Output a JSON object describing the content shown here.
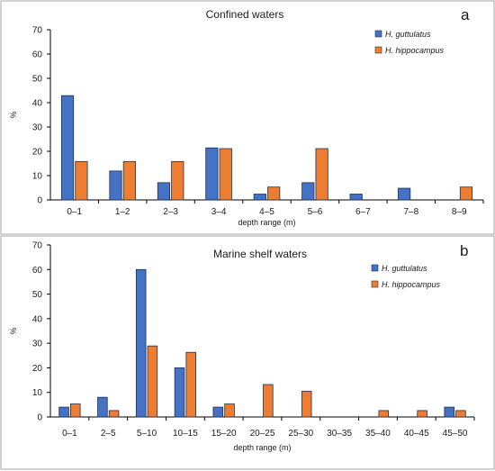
{
  "colors": {
    "series_1": "#4472C4",
    "series_2": "#ED7D31",
    "bar_stroke": "#1f2f4d",
    "axis": "#000000",
    "panel_border": "#a6a6a6"
  },
  "chart_data": [
    {
      "type": "bar",
      "panel_letter": "a",
      "title": "Confined waters",
      "xlabel": "depth range (m)",
      "ylabel": "%",
      "ylim": [
        0,
        70
      ],
      "y_ticks": [
        0,
        10,
        20,
        30,
        40,
        50,
        60,
        70
      ],
      "grid": false,
      "legend_position": "top-right",
      "categories": [
        "0–1",
        "1–2",
        "2–3",
        "3–4",
        "4–5",
        "5–6",
        "6–7",
        "7–8",
        "8–9"
      ],
      "series": [
        {
          "name": "H. guttulatus",
          "values": [
            42.9,
            11.9,
            7.1,
            21.4,
            2.4,
            7.1,
            2.4,
            4.8,
            0
          ]
        },
        {
          "name": "H. hippocampus",
          "values": [
            15.8,
            15.8,
            15.8,
            21.1,
            5.3,
            21.1,
            0,
            0,
            5.3
          ]
        }
      ]
    },
    {
      "type": "bar",
      "panel_letter": "b",
      "title": "Marine shelf waters",
      "xlabel": "depth range (m)",
      "ylabel": "%",
      "ylim": [
        0,
        70
      ],
      "y_ticks": [
        0,
        10,
        20,
        30,
        40,
        50,
        60,
        70
      ],
      "grid": false,
      "legend_position": "top-right",
      "categories": [
        "0–1",
        "2–5",
        "5–10",
        "10–15",
        "15–20",
        "20–25",
        "25–30",
        "30–35",
        "35–40",
        "40–45",
        "45–50"
      ],
      "series": [
        {
          "name": "H. guttulatus",
          "values": [
            4,
            8,
            60,
            20,
            4,
            0,
            0,
            0,
            0,
            0,
            4
          ]
        },
        {
          "name": "H. hippocampus",
          "values": [
            5.3,
            2.6,
            28.9,
            26.3,
            5.3,
            13.2,
            10.5,
            0,
            2.6,
            2.6,
            2.6
          ]
        }
      ]
    }
  ]
}
